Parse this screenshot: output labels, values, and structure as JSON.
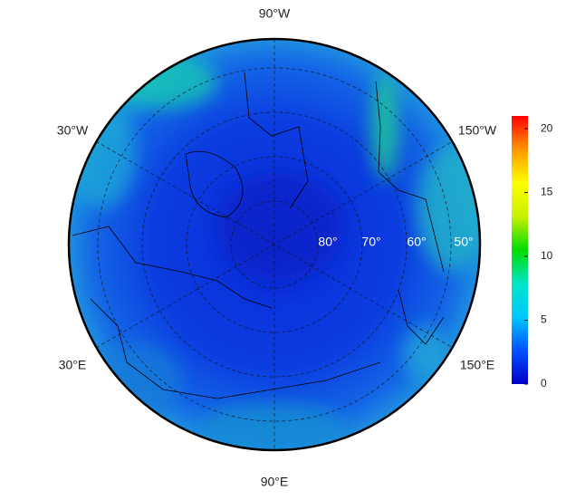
{
  "map": {
    "type": "polar-map",
    "longitude_labels": [
      "90°W",
      "30°W",
      "150°W",
      "30°E",
      "150°E",
      "90°E"
    ],
    "latitude_labels": [
      "80°",
      "70°",
      "60°",
      "50°"
    ],
    "colorbar": {
      "lim": [
        0,
        21
      ],
      "ticks": [
        0,
        5,
        10,
        15,
        20
      ],
      "colors": [
        "#0000cc",
        "#0050ff",
        "#00c8ff",
        "#00e6c8",
        "#00dc00",
        "#c8f000",
        "#ffff00",
        "#ff9600",
        "#ff0000"
      ]
    }
  }
}
